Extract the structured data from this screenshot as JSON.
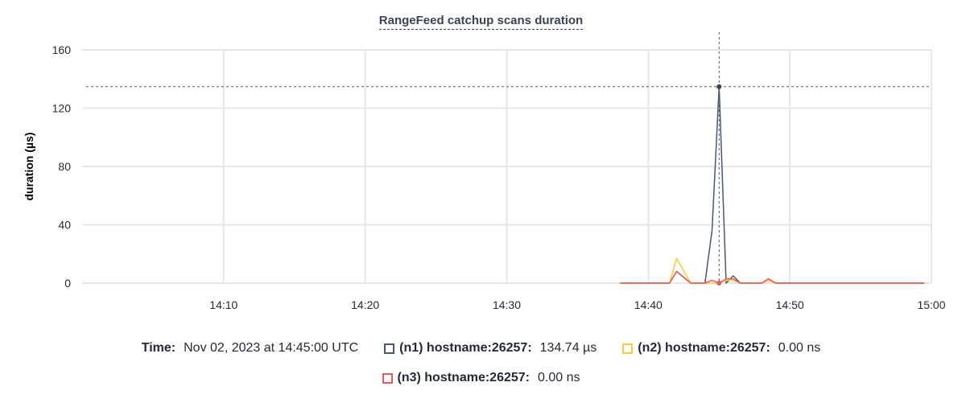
{
  "chart_data": {
    "type": "line",
    "title": "RangeFeed catchup scans duration",
    "ylabel": "duration (µs)",
    "xlabel": "",
    "ylim": [
      0,
      160
    ],
    "yticks": [
      "0",
      "40",
      "80",
      "120",
      "160"
    ],
    "xlim": [
      "14:00",
      "15:00"
    ],
    "xticks": [
      "14:10",
      "14:20",
      "14:30",
      "14:40",
      "14:50",
      "15:00"
    ],
    "grid": true,
    "x": [
      "14:38:00",
      "14:41:30",
      "14:42:00",
      "14:43:00",
      "14:44:00",
      "14:44:30",
      "14:45:00",
      "14:45:30",
      "14:46:00",
      "14:46:30",
      "14:48:00",
      "14:48:30",
      "14:49:00",
      "14:59:30"
    ],
    "series": [
      {
        "name": "(n1) hostname:26257",
        "color": "#475872",
        "values": [
          0,
          0,
          8,
          0,
          0,
          36,
          134.74,
          0,
          5,
          0,
          0,
          2,
          0,
          0
        ]
      },
      {
        "name": "(n2) hostname:26257",
        "color": "#ffc93c",
        "values": [
          0,
          0,
          17,
          0,
          0,
          0,
          0,
          2,
          2,
          0,
          0,
          2,
          0,
          0
        ]
      },
      {
        "name": "(n3) hostname:26257",
        "color": "#ea5a5a",
        "values": [
          0,
          0,
          8,
          0,
          0,
          2,
          0,
          3,
          3,
          0,
          0,
          3,
          0,
          0
        ]
      }
    ],
    "hover": {
      "time_label": "Time:",
      "time": "Nov 02, 2023 at 14:45:00 UTC",
      "x": "14:45:00",
      "values": [
        "134.74 µs",
        "0.00 ns",
        "0.00 ns"
      ]
    },
    "legend_position": "bottom"
  }
}
